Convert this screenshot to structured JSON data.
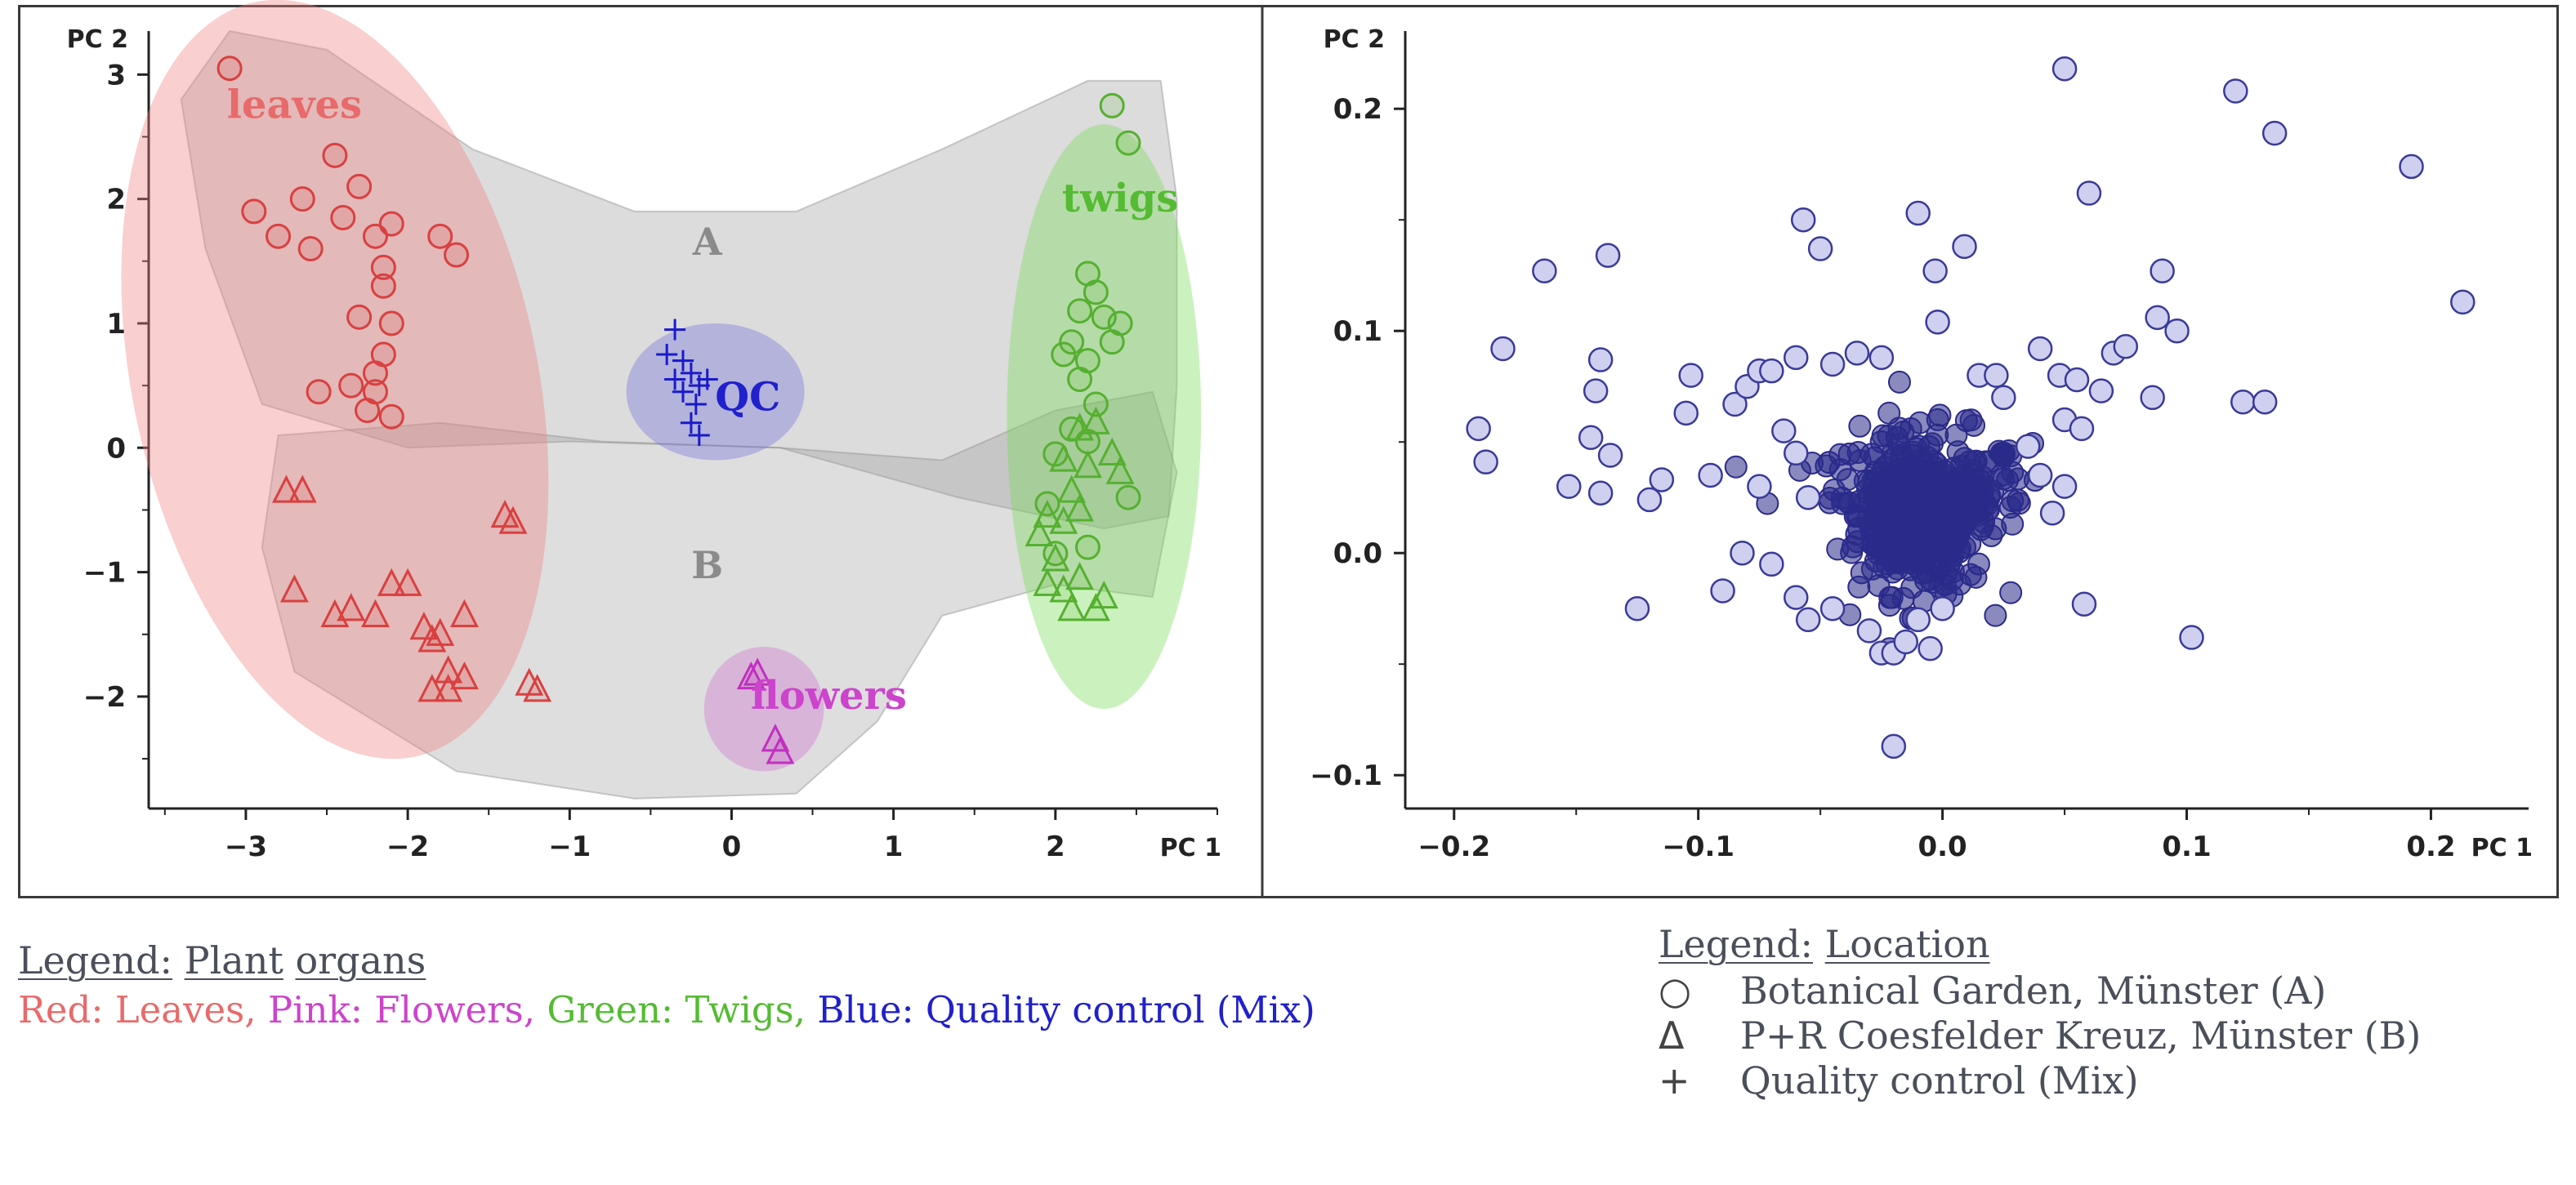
{
  "chart_data": [
    {
      "type": "scatter",
      "panel": "left",
      "title": "",
      "xlabel": "PC 1",
      "ylabel": "PC 2",
      "xlim": [
        -3.6,
        3.0
      ],
      "ylim": [
        -2.9,
        3.35
      ],
      "x_ticks": [
        -3,
        -2,
        -1,
        0,
        1,
        2
      ],
      "y_ticks": [
        -2,
        -1,
        0,
        1,
        2,
        3
      ],
      "x_tick_labels": [
        "−3",
        "−2",
        "−1",
        "0",
        "1",
        "2"
      ],
      "y_tick_labels": [
        "−2",
        "−1",
        "0",
        "1",
        "2",
        "3"
      ],
      "region_labels": [
        {
          "text": "A",
          "x": -0.15,
          "y": 1.55,
          "color": "#8a8a8a"
        },
        {
          "text": "B",
          "x": -0.15,
          "y": -1.05,
          "color": "#8a8a8a"
        }
      ],
      "cluster_labels": [
        {
          "text": "leaves",
          "x": -2.7,
          "y": 2.65,
          "color": "#e86a6a"
        },
        {
          "text": "twigs",
          "x": 2.4,
          "y": 1.9,
          "color": "#55bb33"
        },
        {
          "text": "QC",
          "x": 0.1,
          "y": 0.3,
          "color": "#2020cc"
        },
        {
          "text": "flowers",
          "x": 0.6,
          "y": -2.1,
          "color": "#cc44cc"
        }
      ],
      "series": [
        {
          "name": "Leaves (A)",
          "marker": "circle",
          "color": "#d94040",
          "points": [
            [
              -3.1,
              3.05
            ],
            [
              -2.95,
              1.9
            ],
            [
              -2.8,
              1.7
            ],
            [
              -2.6,
              1.6
            ],
            [
              -2.65,
              2.0
            ],
            [
              -2.45,
              2.35
            ],
            [
              -2.3,
              2.1
            ],
            [
              -2.4,
              1.85
            ],
            [
              -2.2,
              1.7
            ],
            [
              -2.1,
              1.8
            ],
            [
              -2.15,
              1.45
            ],
            [
              -2.15,
              1.3
            ],
            [
              -1.8,
              1.7
            ],
            [
              -1.7,
              1.55
            ],
            [
              -2.3,
              1.05
            ],
            [
              -2.1,
              1.0
            ],
            [
              -2.15,
              0.75
            ],
            [
              -2.2,
              0.6
            ],
            [
              -2.55,
              0.45
            ],
            [
              -2.35,
              0.5
            ],
            [
              -2.2,
              0.45
            ],
            [
              -2.25,
              0.3
            ],
            [
              -2.1,
              0.25
            ]
          ]
        },
        {
          "name": "Leaves (B)",
          "marker": "triangle",
          "color": "#d94040",
          "points": [
            [
              -2.75,
              -0.35
            ],
            [
              -2.65,
              -0.35
            ],
            [
              -2.7,
              -1.15
            ],
            [
              -2.45,
              -1.35
            ],
            [
              -2.35,
              -1.3
            ],
            [
              -2.2,
              -1.35
            ],
            [
              -2.1,
              -1.1
            ],
            [
              -2.0,
              -1.1
            ],
            [
              -1.9,
              -1.45
            ],
            [
              -1.85,
              -1.55
            ],
            [
              -1.8,
              -1.5
            ],
            [
              -1.65,
              -1.35
            ],
            [
              -1.75,
              -1.8
            ],
            [
              -1.85,
              -1.95
            ],
            [
              -1.75,
              -1.95
            ],
            [
              -1.65,
              -1.85
            ],
            [
              -1.4,
              -0.55
            ],
            [
              -1.35,
              -0.6
            ],
            [
              -1.25,
              -1.9
            ],
            [
              -1.2,
              -1.95
            ]
          ]
        },
        {
          "name": "Twigs (A)",
          "marker": "circle",
          "color": "#55b030",
          "points": [
            [
              2.35,
              2.75
            ],
            [
              2.45,
              2.45
            ],
            [
              2.2,
              1.4
            ],
            [
              2.25,
              1.25
            ],
            [
              2.15,
              1.1
            ],
            [
              2.3,
              1.05
            ],
            [
              2.4,
              1.0
            ],
            [
              2.35,
              0.85
            ],
            [
              2.1,
              0.85
            ],
            [
              2.2,
              0.7
            ],
            [
              2.05,
              0.75
            ],
            [
              2.15,
              0.55
            ],
            [
              2.25,
              0.35
            ],
            [
              2.1,
              0.15
            ],
            [
              2.2,
              0.05
            ],
            [
              2.0,
              -0.05
            ],
            [
              1.95,
              -0.45
            ],
            [
              2.2,
              -0.8
            ],
            [
              2.45,
              -0.4
            ],
            [
              2.0,
              -0.85
            ]
          ]
        },
        {
          "name": "Twigs (B)",
          "marker": "triangle",
          "color": "#55b030",
          "points": [
            [
              2.15,
              0.15
            ],
            [
              2.25,
              0.2
            ],
            [
              2.05,
              -0.1
            ],
            [
              2.2,
              -0.15
            ],
            [
              2.35,
              -0.05
            ],
            [
              2.4,
              -0.2
            ],
            [
              2.1,
              -0.35
            ],
            [
              1.95,
              -0.55
            ],
            [
              2.05,
              -0.6
            ],
            [
              2.15,
              -0.5
            ],
            [
              1.9,
              -0.7
            ],
            [
              2.0,
              -0.9
            ],
            [
              1.95,
              -1.1
            ],
            [
              2.05,
              -1.15
            ],
            [
              2.15,
              -1.05
            ],
            [
              2.1,
              -1.3
            ],
            [
              2.25,
              -1.3
            ],
            [
              2.3,
              -1.2
            ]
          ]
        },
        {
          "name": "Flowers (B)",
          "marker": "triangle",
          "color": "#c030c0",
          "points": [
            [
              0.12,
              -1.85
            ],
            [
              0.16,
              -1.82
            ],
            [
              0.27,
              -2.35
            ],
            [
              0.3,
              -2.45
            ]
          ]
        },
        {
          "name": "Quality control (Mix)",
          "marker": "plus",
          "color": "#1a1acc",
          "points": [
            [
              -0.35,
              0.95
            ],
            [
              -0.4,
              0.75
            ],
            [
              -0.3,
              0.7
            ],
            [
              -0.25,
              0.6
            ],
            [
              -0.35,
              0.55
            ],
            [
              -0.2,
              0.5
            ],
            [
              -0.3,
              0.45
            ],
            [
              -0.15,
              0.55
            ],
            [
              -0.22,
              0.35
            ],
            [
              -0.25,
              0.2
            ],
            [
              -0.2,
              0.1
            ]
          ]
        }
      ],
      "ellipses": [
        {
          "name": "leaves region",
          "color": "#f08080",
          "cx": -2.45,
          "cy": 0.55,
          "rx": 1.25,
          "ry": 3.1,
          "rot_deg": -12
        },
        {
          "name": "twigs region",
          "color": "#77dd55",
          "cx": 2.3,
          "cy": 0.25,
          "rx": 0.6,
          "ry": 2.35,
          "rot_deg": 0
        },
        {
          "name": "QC region",
          "color": "#7070dd",
          "cx": -0.1,
          "cy": 0.45,
          "rx": 0.55,
          "ry": 0.55,
          "rot_deg": 0
        },
        {
          "name": "flowers region",
          "color": "#d070d0",
          "cx": 0.2,
          "cy": -2.1,
          "rx": 0.37,
          "ry": 0.5,
          "rot_deg": 0
        }
      ]
    },
    {
      "type": "scatter",
      "panel": "right",
      "title": "",
      "xlabel": "PC 1",
      "ylabel": "PC 2",
      "xlim": [
        -0.22,
        0.24
      ],
      "ylim": [
        -0.115,
        0.235
      ],
      "x_ticks": [
        -0.2,
        -0.1,
        0.0,
        0.1,
        0.2
      ],
      "y_ticks": [
        -0.1,
        0.0,
        0.1,
        0.2
      ],
      "x_tick_labels": [
        "−0.2",
        "−0.1",
        "0.0",
        "0.1",
        "0.2"
      ],
      "y_tick_labels": [
        "−0.1",
        "0.0",
        "0.1",
        "0.2"
      ],
      "marker": "circle",
      "marker_fill": "#cfd0f0",
      "marker_edge": "#3a3a99",
      "dense_core": {
        "cx": -0.008,
        "cy": 0.018,
        "sx": 0.022,
        "sy": 0.018,
        "n": 450,
        "color": "#2a2a8a"
      },
      "points": [
        [
          0.05,
          0.218
        ],
        [
          0.12,
          0.208
        ],
        [
          0.136,
          0.189
        ],
        [
          0.192,
          0.174
        ],
        [
          0.213,
          0.113
        ],
        [
          -0.163,
          0.127
        ],
        [
          -0.137,
          0.134
        ],
        [
          -0.057,
          0.15
        ],
        [
          -0.05,
          0.137
        ],
        [
          -0.01,
          0.153
        ],
        [
          0.009,
          0.138
        ],
        [
          -0.003,
          0.127
        ],
        [
          0.06,
          0.162
        ],
        [
          0.09,
          0.127
        ],
        [
          0.088,
          0.106
        ],
        [
          0.096,
          0.1
        ],
        [
          -0.18,
          0.092
        ],
        [
          -0.14,
          0.087
        ],
        [
          -0.142,
          0.073
        ],
        [
          -0.19,
          0.056
        ],
        [
          -0.187,
          0.041
        ],
        [
          -0.144,
          0.052
        ],
        [
          -0.136,
          0.044
        ],
        [
          -0.153,
          0.03
        ],
        [
          -0.14,
          0.027
        ],
        [
          -0.12,
          0.024
        ],
        [
          -0.115,
          0.033
        ],
        [
          -0.105,
          0.063
        ],
        [
          -0.103,
          0.08
        ],
        [
          -0.085,
          0.067
        ],
        [
          -0.08,
          0.075
        ],
        [
          -0.075,
          0.082
        ],
        [
          -0.07,
          0.082
        ],
        [
          -0.06,
          0.088
        ],
        [
          -0.045,
          0.085
        ],
        [
          -0.035,
          0.09
        ],
        [
          -0.025,
          0.088
        ],
        [
          -0.002,
          0.104
        ],
        [
          0.015,
          0.08
        ],
        [
          0.022,
          0.08
        ],
        [
          0.025,
          0.07
        ],
        [
          0.04,
          0.092
        ],
        [
          0.048,
          0.08
        ],
        [
          0.055,
          0.078
        ],
        [
          0.065,
          0.073
        ],
        [
          0.07,
          0.09
        ],
        [
          0.075,
          0.093
        ],
        [
          0.086,
          0.07
        ],
        [
          0.123,
          0.068
        ],
        [
          0.132,
          0.068
        ],
        [
          0.05,
          0.06
        ],
        [
          0.057,
          0.056
        ],
        [
          -0.125,
          -0.025
        ],
        [
          -0.09,
          -0.017
        ],
        [
          -0.082,
          0.0
        ],
        [
          -0.07,
          -0.005
        ],
        [
          -0.06,
          -0.02
        ],
        [
          -0.055,
          -0.03
        ],
        [
          -0.045,
          -0.025
        ],
        [
          -0.03,
          -0.035
        ],
        [
          -0.025,
          -0.045
        ],
        [
          -0.02,
          -0.045
        ],
        [
          -0.015,
          -0.04
        ],
        [
          -0.01,
          -0.03
        ],
        [
          0.0,
          -0.025
        ],
        [
          -0.005,
          -0.043
        ],
        [
          -0.02,
          -0.087
        ],
        [
          0.058,
          -0.023
        ],
        [
          0.102,
          -0.038
        ],
        [
          0.05,
          0.03
        ],
        [
          0.04,
          0.035
        ],
        [
          -0.075,
          0.03
        ],
        [
          -0.06,
          0.045
        ],
        [
          -0.055,
          0.025
        ],
        [
          0.035,
          0.048
        ],
        [
          0.045,
          0.018
        ],
        [
          -0.095,
          0.035
        ],
        [
          -0.065,
          0.055
        ]
      ]
    }
  ],
  "legend_organs": {
    "title_parts": [
      "Legend:",
      "Plant",
      "organs"
    ],
    "items": [
      {
        "text": "Red: Leaves,",
        "color": "#e86a6a"
      },
      {
        "text": "Pink: Flowers,",
        "color": "#cc44cc"
      },
      {
        "text": "Green: Twigs,",
        "color": "#55bb33"
      },
      {
        "text": "Blue: Quality control (Mix)",
        "color": "#2020cc"
      }
    ]
  },
  "legend_location": {
    "title_parts": [
      "Legend:",
      "Location"
    ],
    "items": [
      {
        "symbol": "○",
        "text": "Botanical Garden, Münster (A)"
      },
      {
        "symbol": "Δ",
        "text": "P+R Coesfelder Kreuz, Münster (B)"
      },
      {
        "symbol": "+",
        "text": "Quality control (Mix)"
      }
    ]
  }
}
